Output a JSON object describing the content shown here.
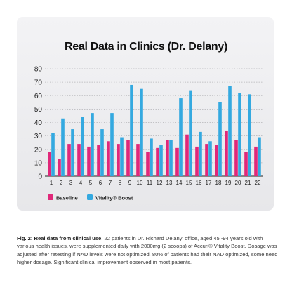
{
  "chart_data": {
    "type": "bar",
    "title": "Real Data in Clinics (Dr. Delany)",
    "categories": [
      "1",
      "2",
      "3",
      "4",
      "5",
      "6",
      "7",
      "8",
      "9",
      "10",
      "11",
      "12",
      "13",
      "14",
      "15",
      "16",
      "17",
      "18",
      "19",
      "20",
      "21",
      "22"
    ],
    "series": [
      {
        "name": "Baseline",
        "color": "#e0287a",
        "values": [
          18,
          13,
          24,
          24,
          22,
          23,
          26,
          24,
          27,
          24,
          18,
          21,
          27,
          21,
          31,
          22,
          24,
          23,
          34,
          27,
          18,
          22
        ]
      },
      {
        "name": "Vitality® Boost",
        "color": "#34a9e0",
        "values": [
          32,
          43,
          35,
          44,
          47,
          35,
          47,
          29,
          68,
          65,
          28,
          23,
          27,
          58,
          64,
          33,
          26,
          55,
          67,
          62,
          61,
          29
        ]
      }
    ],
    "ylim": [
      0,
      80
    ],
    "yticks": [
      "0",
      "10",
      "20",
      "30",
      "40",
      "50",
      "60",
      "70",
      "80"
    ],
    "grid": true,
    "legend_position": "bottom-center"
  },
  "caption": {
    "label": "Fig. 2: Real data from clinical use",
    "text": ". 22 patients in Dr. Richard Delany' office, aged 45 -94 years old with various health issues, were supplemented daily with 2000mg (2 scoops) of Accuri® Vitality Boost. Dosage was adjusted after retesting if NAD levels were not optimized. 80% of patients had their NAD optimized, some need higher dosage. Significant clinical improvement observed in most patients."
  }
}
